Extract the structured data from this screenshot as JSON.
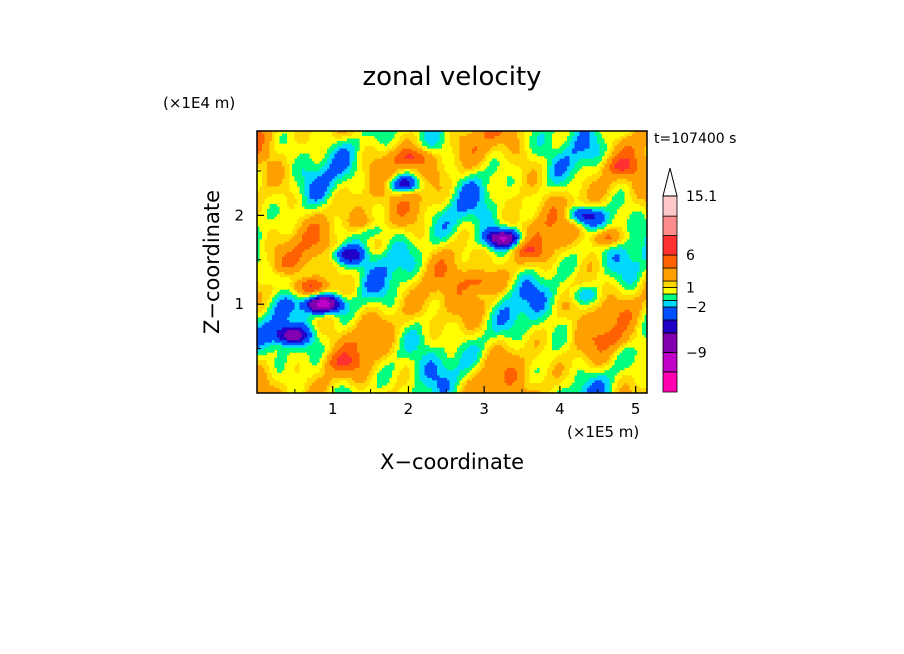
{
  "chart_data": {
    "type": "heatmap",
    "title": "zonal velocity",
    "xlabel": "X−coordinate",
    "ylabel": "Z−coordinate",
    "x_unit": "(×1E5 m)",
    "y_unit": "(×1E4 m)",
    "time_label": "t=107400 s",
    "xlim": [
      0,
      5.15
    ],
    "ylim": [
      0,
      2.95
    ],
    "x_ticks": [
      "1",
      "2",
      "3",
      "4",
      "5"
    ],
    "y_ticks": [
      "1",
      "2"
    ],
    "colorbar": {
      "levels": [
        -15.1,
        -12,
        -9,
        -6,
        -4,
        -2,
        -1,
        0,
        1,
        2,
        4,
        6,
        9,
        12,
        15.1
      ],
      "colors": [
        "#ff00b0",
        "#c000c8",
        "#8000b0",
        "#2000c8",
        "#0050ff",
        "#00d8ff",
        "#00ff80",
        "#ffff00",
        "#ffd800",
        "#ffa000",
        "#ff6000",
        "#ff3030",
        "#ff8c8c",
        "#ffc8c8"
      ],
      "labels": [
        "15.1",
        "6",
        "1",
        "−2",
        "−9"
      ],
      "label_values": [
        15.1,
        6,
        1,
        -2,
        -9
      ],
      "extend_max": true
    },
    "field_features": [
      {
        "kind": "jet",
        "x": 3.25,
        "z": 1.74,
        "u": -9
      },
      {
        "kind": "jet",
        "x": 1.95,
        "z": 2.35,
        "u": -7
      },
      {
        "kind": "jet",
        "x": 0.87,
        "z": 1.0,
        "u": -12
      },
      {
        "kind": "jet",
        "x": 0.45,
        "z": 0.65,
        "u": -7
      },
      {
        "kind": "jet",
        "x": 4.3,
        "z": 2.0,
        "u": -6
      },
      {
        "kind": "jet",
        "x": 1.2,
        "z": 1.55,
        "u": -5
      },
      {
        "kind": "jet",
        "x": 4.3,
        "z": 1.1,
        "u": -2.5
      },
      {
        "kind": "jet",
        "x": 1.55,
        "z": 1.85,
        "u": -2.5
      },
      {
        "kind": "jet",
        "x": 0.35,
        "z": 1.3,
        "u": -2.5
      },
      {
        "kind": "jet",
        "x": 2.05,
        "z": 2.65,
        "u": 5
      },
      {
        "kind": "jet",
        "x": 4.6,
        "z": 1.75,
        "u": 5
      },
      {
        "kind": "jet",
        "x": 0.72,
        "z": 1.2,
        "u": 5
      },
      {
        "kind": "jet",
        "x": 1.45,
        "z": 1.9,
        "u": 3
      },
      {
        "kind": "jet",
        "x": 3.6,
        "z": 1.6,
        "u": 2.5
      },
      {
        "kind": "jet",
        "x": 4.8,
        "z": 2.55,
        "u": 3
      },
      {
        "kind": "jet",
        "x": 2.95,
        "z": 1.25,
        "u": 3
      },
      {
        "kind": "jet",
        "x": 4.75,
        "z": 0.6,
        "u": 1.5
      },
      {
        "kind": "jet",
        "x": 1.1,
        "z": 0.35,
        "u": 2.5
      }
    ]
  }
}
